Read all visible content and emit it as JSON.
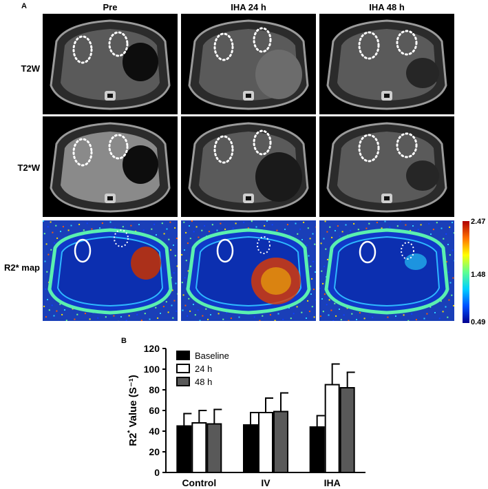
{
  "figure": {
    "panel_a_letter": "A",
    "panel_b_letter": "B",
    "columns": [
      "Pre",
      "IHA 24 h",
      "IHA 48 h"
    ],
    "rows": [
      "T2W",
      "T2*W",
      "R2* map"
    ],
    "colorbar": {
      "max": "2.47",
      "mid": "1.48",
      "min": "0.49",
      "colors": [
        "#00008f",
        "#0050ff",
        "#00d0ff",
        "#60ff90",
        "#ffff00",
        "#ff7000",
        "#b00000"
      ]
    }
  },
  "chart_data": {
    "type": "bar",
    "categories": [
      "Control",
      "IV",
      "IHA"
    ],
    "series": [
      {
        "name": "Baseline",
        "values": [
          45,
          46,
          44
        ],
        "errors": [
          12,
          12,
          11
        ],
        "color": "#000000"
      },
      {
        "name": "24 h",
        "values": [
          48,
          58,
          85
        ],
        "errors": [
          12,
          14,
          20
        ],
        "color": "#ffffff"
      },
      {
        "name": "48 h",
        "values": [
          47,
          59,
          82
        ],
        "errors": [
          14,
          18,
          15
        ],
        "color": "#595959"
      }
    ],
    "ylabel": "R2* Value (S⁻¹)",
    "ylabel_main": "R2",
    "ylabel_sup": "*",
    "ylabel_rest": " Value (S⁻¹)",
    "ylim": [
      0,
      120
    ],
    "yticks": [
      0,
      20,
      40,
      60,
      80,
      100,
      120
    ],
    "legend_position": "top-left"
  }
}
